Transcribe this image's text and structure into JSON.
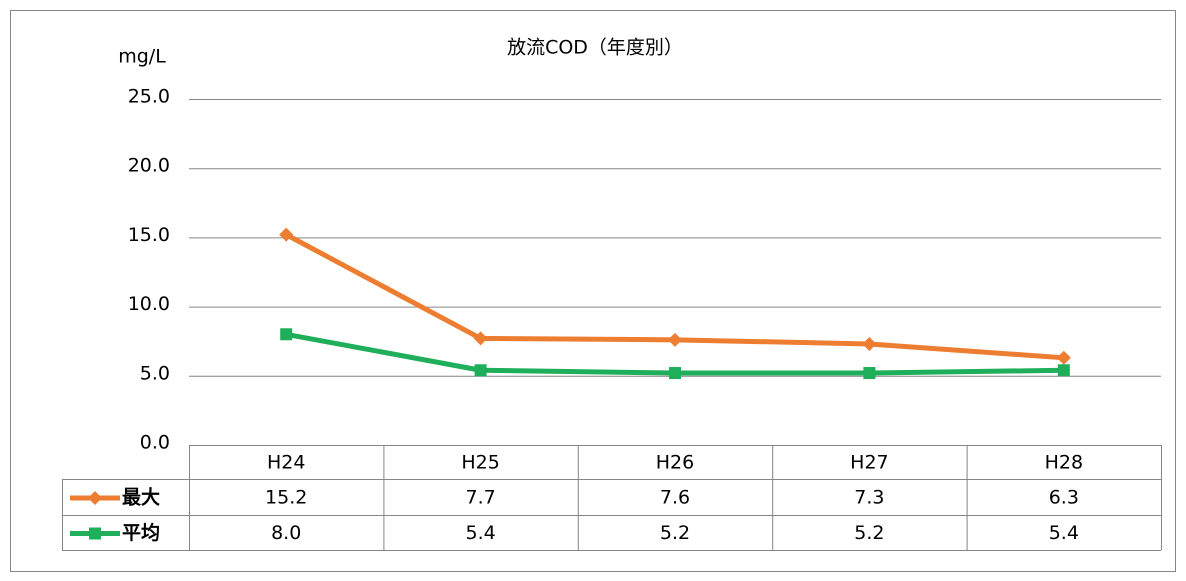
{
  "chart_data": {
    "type": "line",
    "title": "放流COD（年度別）",
    "y_label": "mg/L",
    "categories": [
      "H24",
      "H25",
      "H26",
      "H27",
      "H28"
    ],
    "series": [
      {
        "name": "最大",
        "color": "#ed7d31",
        "marker": "diamond",
        "values": [
          15.2,
          7.7,
          7.6,
          7.3,
          6.3
        ]
      },
      {
        "name": "平均",
        "color": "#1fae5a",
        "marker": "square",
        "values": [
          8.0,
          5.4,
          5.2,
          5.2,
          5.4
        ],
        "value_labels": [
          "8.0",
          "5.4",
          "5.2",
          "5.2",
          "5.4"
        ]
      }
    ],
    "ylim": [
      0,
      25
    ],
    "yticks": [
      {
        "value": 0,
        "label": "0.0"
      },
      {
        "value": 5,
        "label": "5.0"
      },
      {
        "value": 10,
        "label": "10.0"
      },
      {
        "value": 15,
        "label": "15.0"
      },
      {
        "value": 20,
        "label": "20.0"
      },
      {
        "value": 25,
        "label": "25.0"
      }
    ],
    "grid": true,
    "data_table": true
  }
}
